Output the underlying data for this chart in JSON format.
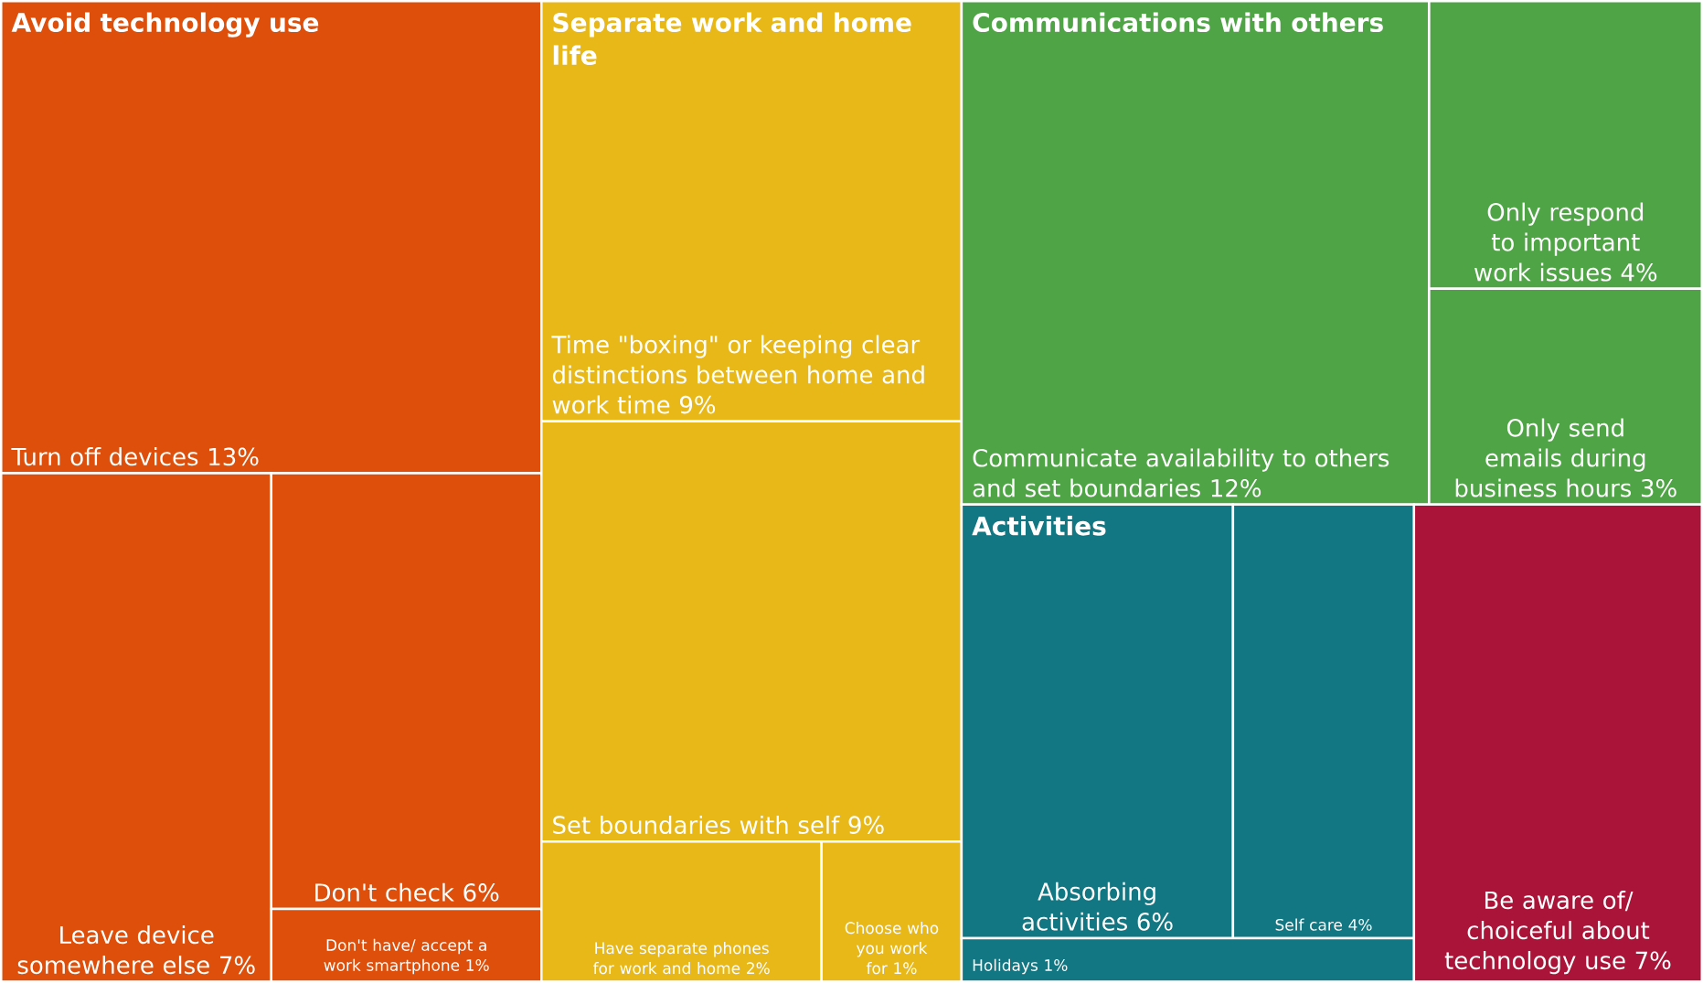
{
  "chart_data": {
    "type": "other",
    "categories": [
      "Turn off devices",
      "Leave device somewhere else",
      "Don't check",
      "Don't have/ accept a work smartphone",
      "Time \"boxing\" or keeping clear distinctions between home and work time",
      "Set boundaries with self",
      "Have separate phones for work and home",
      "Choose who you work for",
      "Communicate availability to others and set boundaries",
      "Only respond to important work issues",
      "Only send emails during business hours",
      "Absorbing activities",
      "Self care",
      "Holidays",
      "Be aware of/ choiceful about technology use"
    ],
    "series": [
      {
        "name": "Avoid technology use",
        "color": "#dd4f0a",
        "values": [
          13,
          7,
          6,
          1,
          null,
          null,
          null,
          null,
          null,
          null,
          null,
          null,
          null,
          null,
          null
        ],
        "value_labels": [
          "13%",
          "7%",
          "6%",
          "1%",
          null,
          null,
          null,
          null,
          null,
          null,
          null,
          null,
          null,
          null,
          null
        ]
      },
      {
        "name": "Separate work and home life",
        "color": "#e8b819",
        "values": [
          null,
          null,
          null,
          null,
          9,
          9,
          2,
          1,
          null,
          null,
          null,
          null,
          null,
          null,
          null
        ],
        "value_labels": [
          null,
          null,
          null,
          null,
          "9%",
          "9%",
          "2%",
          "1%",
          null,
          null,
          null,
          null,
          null,
          null,
          null
        ]
      },
      {
        "name": "Communications with others",
        "color": "#4fa546",
        "values": [
          null,
          null,
          null,
          null,
          null,
          null,
          null,
          null,
          12,
          4,
          3,
          null,
          null,
          null,
          null
        ],
        "value_labels": [
          null,
          null,
          null,
          null,
          null,
          null,
          null,
          null,
          "12%",
          "4%",
          "3%",
          null,
          null,
          null,
          null
        ]
      },
      {
        "name": "Activities",
        "color": "#127782",
        "values": [
          null,
          null,
          null,
          null,
          null,
          null,
          null,
          null,
          null,
          null,
          null,
          6,
          4,
          1,
          null
        ],
        "value_labels": [
          null,
          null,
          null,
          null,
          null,
          null,
          null,
          null,
          null,
          null,
          null,
          "6%",
          "4%",
          "1%",
          null
        ]
      },
      {
        "color": "#ab1439",
        "values": [
          null,
          null,
          null,
          null,
          null,
          null,
          null,
          null,
          null,
          null,
          null,
          null,
          null,
          null,
          7
        ],
        "value_labels": [
          null,
          null,
          null,
          null,
          null,
          null,
          null,
          null,
          null,
          null,
          null,
          null,
          null,
          null,
          "7%"
        ]
      }
    ]
  }
}
